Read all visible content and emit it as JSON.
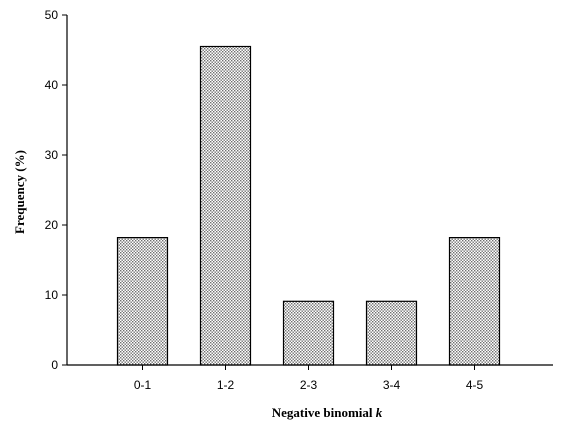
{
  "chart_data": {
    "type": "bar",
    "categories": [
      "0-1",
      "1-2",
      "2-3",
      "3-4",
      "4-5"
    ],
    "values": [
      18.2,
      45.5,
      9.1,
      9.1,
      18.2
    ],
    "title": "",
    "xlabel": "Negative binomial",
    "xlabel_symbol": "k",
    "ylabel": "Frequency (%)",
    "ylim": [
      0,
      50
    ],
    "yticks": [
      0,
      10,
      20,
      30,
      40,
      50
    ],
    "grid": false,
    "legend": "none",
    "bar_fill": "#c8c8c8",
    "bar_stroke": "#000000"
  }
}
